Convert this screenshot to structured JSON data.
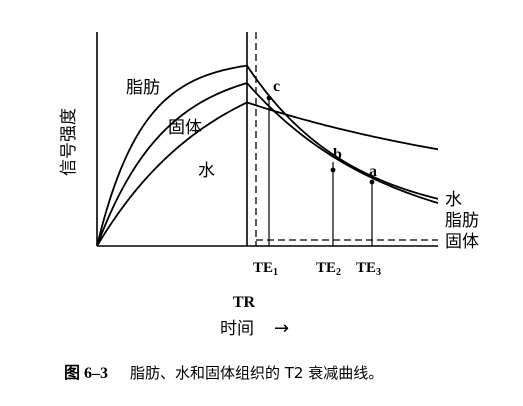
{
  "chart_data": {
    "type": "line",
    "ylabel": "信号强度",
    "xlabel": "时间",
    "x_arrow": "→",
    "tr_label": "TR",
    "caption": {
      "number": "图 6–3",
      "text": "脂肪、水和固体组织的 T2 衰减曲线。"
    },
    "recovery_labels": [
      "脂肪",
      "固体",
      "水"
    ],
    "decay_labels": [
      "水",
      "脂肪",
      "固体"
    ],
    "markers": [
      {
        "label": "c",
        "te": "TE",
        "sub": "1"
      },
      {
        "label": "b",
        "te": "TE",
        "sub": "2"
      },
      {
        "label": "a",
        "te": "TE",
        "sub": "3"
      }
    ],
    "series": [
      {
        "name": "脂肪",
        "recovery_peak": 0.93,
        "tau_rise": 0.3,
        "decay_end": 0.11,
        "tau_decay": 0.55
      },
      {
        "name": "固体",
        "recovery_peak": 0.84,
        "tau_rise": 0.45,
        "decay_end": 0.0,
        "tau_decay": 0.75
      },
      {
        "name": "水",
        "recovery_peak": 0.74,
        "tau_rise": 0.8,
        "decay_end": 0.22,
        "tau_decay": 1.6
      }
    ]
  }
}
